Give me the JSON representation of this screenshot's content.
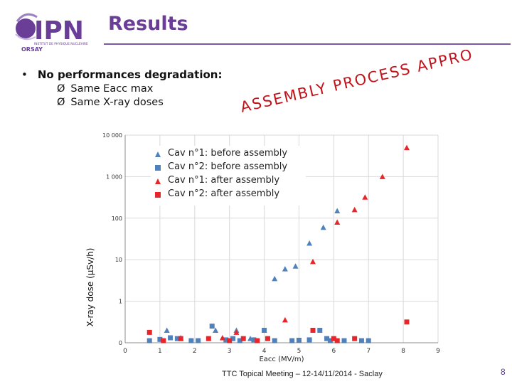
{
  "header": {
    "title": "Results",
    "logo_text": "IPN",
    "logo_subtext": "INSTITUT DE PHYSIQUE NUCLÉAIRE",
    "logo_city": "ORSAY"
  },
  "bullets": {
    "main": "No performances degradation:",
    "sub": [
      "Same Eacc max",
      "Same X-ray doses"
    ]
  },
  "annotation": "ASSEMBLY PROCESS APPROVED",
  "colors": {
    "purple": "#6a3d97",
    "blue": "#4f81bd",
    "red": "#e8262a",
    "annotation": "#c0141c"
  },
  "chart_data": {
    "type": "scatter",
    "xlabel": "Eacc (MV/m)",
    "ylabel": "X-ray dose (µSv/h)",
    "x_ticks": [
      "0",
      "1",
      "2",
      "3",
      "4",
      "5",
      "6",
      "7",
      "8",
      "9"
    ],
    "y_ticks": [
      "0",
      "1",
      "10",
      "100",
      "1 000",
      "10 000"
    ],
    "xlim": [
      0,
      9
    ],
    "ylim": [
      0,
      10000
    ],
    "y_scale": "log",
    "legend_position": "top-left",
    "series": [
      {
        "name": "Cav n°1: before assembly",
        "marker": "triangle",
        "color": "#4f81bd",
        "points": [
          [
            1.2,
            0.3
          ],
          [
            1.6,
            0.12
          ],
          [
            2.6,
            0.3
          ],
          [
            3.2,
            0.3
          ],
          [
            3.6,
            0.1
          ],
          [
            4.0,
            0.3
          ],
          [
            4.3,
            3.5
          ],
          [
            4.6,
            6
          ],
          [
            4.9,
            7
          ],
          [
            5.3,
            25
          ],
          [
            5.7,
            60
          ],
          [
            6.1,
            150
          ]
        ]
      },
      {
        "name": "Cav n°2: before assembly",
        "marker": "square",
        "color": "#4f81bd",
        "points": [
          [
            0.7,
            0.05
          ],
          [
            1.0,
            0.08
          ],
          [
            1.3,
            0.12
          ],
          [
            1.5,
            0.1
          ],
          [
            1.9,
            0.05
          ],
          [
            2.1,
            0.05
          ],
          [
            2.5,
            0.4
          ],
          [
            2.9,
            0.07
          ],
          [
            3.1,
            0.1
          ],
          [
            3.3,
            0.05
          ],
          [
            3.7,
            0.07
          ],
          [
            4.0,
            0.3
          ],
          [
            4.3,
            0.05
          ],
          [
            4.8,
            0.05
          ],
          [
            5.0,
            0.06
          ],
          [
            5.3,
            0.07
          ],
          [
            5.6,
            0.3
          ],
          [
            5.8,
            0.1
          ],
          [
            5.9,
            0.05
          ],
          [
            6.3,
            0.05
          ],
          [
            6.8,
            0.05
          ],
          [
            7.0,
            0.05
          ]
        ]
      },
      {
        "name": "Cav n°1: after assembly",
        "marker": "triangle",
        "color": "#e8262a",
        "points": [
          [
            1.6,
            0.1
          ],
          [
            2.8,
            0.12
          ],
          [
            3.2,
            0.25
          ],
          [
            4.6,
            0.55
          ],
          [
            5.4,
            9
          ],
          [
            6.1,
            80
          ],
          [
            6.6,
            160
          ],
          [
            6.9,
            320
          ],
          [
            7.4,
            1000
          ],
          [
            8.1,
            5000
          ]
        ]
      },
      {
        "name": "Cav n°2: after assembly",
        "marker": "square",
        "color": "#e8262a",
        "points": [
          [
            0.7,
            0.25
          ],
          [
            1.1,
            0.05
          ],
          [
            1.6,
            0.1
          ],
          [
            2.4,
            0.1
          ],
          [
            3.0,
            0.05
          ],
          [
            3.4,
            0.1
          ],
          [
            3.8,
            0.05
          ],
          [
            4.1,
            0.1
          ],
          [
            5.4,
            0.3
          ],
          [
            6.0,
            0.1
          ],
          [
            6.1,
            0.05
          ],
          [
            6.6,
            0.1
          ],
          [
            8.1,
            0.5
          ]
        ]
      }
    ]
  },
  "footer": {
    "text": "TTC Topical Meeting – 12-14/11/2014 - Saclay",
    "page": "8"
  }
}
